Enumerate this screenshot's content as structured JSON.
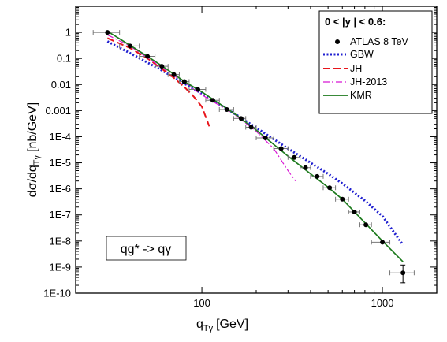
{
  "chart_data": {
    "type": "line",
    "xlabel": "q",
    "xlabel_sub": "Tγ",
    "xlabel_unit": "[GeV]",
    "ylabel": "dσ/dq",
    "ylabel_sub": "Tγ",
    "ylabel_unit": "[nb/GeV]",
    "x_scale": "log",
    "y_scale": "log",
    "xlim": [
      20,
      2000
    ],
    "ylim": [
      1e-10,
      10
    ],
    "x_ticks": [
      {
        "v": 100,
        "label": "100"
      },
      {
        "v": 1000,
        "label": "1000"
      }
    ],
    "y_ticks": [
      {
        "v": 1,
        "label": "1"
      },
      {
        "v": 0.1,
        "label": "0.1"
      },
      {
        "v": 0.01,
        "label": "0.01"
      },
      {
        "v": 0.001,
        "label": "0.001"
      },
      {
        "v": 0.0001,
        "label": "1E-4"
      },
      {
        "v": 1e-05,
        "label": "1E-5"
      },
      {
        "v": 1e-06,
        "label": "1E-6"
      },
      {
        "v": 1e-07,
        "label": "1E-7"
      },
      {
        "v": 1e-08,
        "label": "1E-8"
      },
      {
        "v": 1e-09,
        "label": "1E-9"
      },
      {
        "v": 1e-10,
        "label": "1E-10"
      }
    ],
    "legend_title_parts": [
      "0 < |y",
      "| < 0.6:"
    ],
    "legend_position": "top-right",
    "process_label": "qg* -> qγ",
    "data_points": {
      "name": "ATLAS 8 TeV",
      "color": "#000000",
      "points": [
        {
          "x": 30,
          "y": 1.0,
          "xlo": 25,
          "xhi": 35
        },
        {
          "x": 40,
          "y": 0.3,
          "xlo": 35,
          "xhi": 45
        },
        {
          "x": 50,
          "y": 0.12,
          "xlo": 45,
          "xhi": 55
        },
        {
          "x": 60,
          "y": 0.05,
          "xlo": 55,
          "xhi": 65
        },
        {
          "x": 70,
          "y": 0.024,
          "xlo": 65,
          "xhi": 75
        },
        {
          "x": 80,
          "y": 0.013,
          "xlo": 75,
          "xhi": 85
        },
        {
          "x": 95,
          "y": 0.0065,
          "xlo": 85,
          "xhi": 105
        },
        {
          "x": 115,
          "y": 0.0025,
          "xlo": 105,
          "xhi": 125
        },
        {
          "x": 137.5,
          "y": 0.0011,
          "xlo": 125,
          "xhi": 150
        },
        {
          "x": 165,
          "y": 0.0005,
          "xlo": 150,
          "xhi": 175
        },
        {
          "x": 187.5,
          "y": 0.00023,
          "xlo": 175,
          "xhi": 200
        },
        {
          "x": 225,
          "y": 9e-05,
          "xlo": 200,
          "xhi": 250
        },
        {
          "x": 275,
          "y": 3.5e-05,
          "xlo": 250,
          "xhi": 300
        },
        {
          "x": 325,
          "y": 1.6e-05,
          "xlo": 300,
          "xhi": 350
        },
        {
          "x": 375,
          "y": 6.5e-06,
          "xlo": 350,
          "xhi": 400
        },
        {
          "x": 435,
          "y": 3e-06,
          "xlo": 400,
          "xhi": 470
        },
        {
          "x": 510,
          "y": 1.1e-06,
          "xlo": 470,
          "xhi": 550
        },
        {
          "x": 600,
          "y": 4e-07,
          "xlo": 550,
          "xhi": 650
        },
        {
          "x": 700,
          "y": 1.3e-07,
          "xlo": 650,
          "xhi": 750
        },
        {
          "x": 810,
          "y": 4.2e-08,
          "xlo": 750,
          "xhi": 870
        },
        {
          "x": 1000,
          "y": 9e-09,
          "xlo": 870,
          "xhi": 1100
        },
        {
          "x": 1300,
          "y": 6e-10,
          "xlo": 1100,
          "xhi": 1500,
          "ylo": 2.5e-10,
          "yhi": 1.2e-09
        }
      ]
    },
    "series": [
      {
        "name": "GBW",
        "color": "#1f1fd0",
        "dash": "2,2.5",
        "width": 3,
        "points": [
          [
            30,
            0.45
          ],
          [
            40,
            0.16
          ],
          [
            60,
            0.035
          ],
          [
            80,
            0.011
          ],
          [
            100,
            0.0045
          ],
          [
            150,
            0.0008
          ],
          [
            200,
            0.00022
          ],
          [
            300,
            3.5e-05
          ],
          [
            400,
            1e-05
          ],
          [
            500,
            3.8e-06
          ],
          [
            600,
            1.6e-06
          ],
          [
            800,
            3.5e-07
          ],
          [
            1000,
            9e-08
          ],
          [
            1300,
            7e-09
          ]
        ]
      },
      {
        "name": "JH",
        "color": "#e8151b",
        "dash": "9,4",
        "width": 2,
        "points": [
          [
            30,
            0.6
          ],
          [
            40,
            0.25
          ],
          [
            50,
            0.1
          ],
          [
            60,
            0.04
          ],
          [
            70,
            0.018
          ],
          [
            80,
            0.008
          ],
          [
            90,
            0.0035
          ],
          [
            100,
            0.0014
          ],
          [
            110,
            0.00025
          ]
        ]
      },
      {
        "name": "JH-2013",
        "color": "#d817d4",
        "dash": "8,3,2,3",
        "width": 1.2,
        "points": [
          [
            30,
            0.8
          ],
          [
            40,
            0.3
          ],
          [
            60,
            0.045
          ],
          [
            80,
            0.012
          ],
          [
            100,
            0.004
          ],
          [
            150,
            0.00075
          ],
          [
            200,
            0.00016
          ],
          [
            250,
            3.5e-05
          ],
          [
            300,
            5e-06
          ],
          [
            330,
            2e-06
          ]
        ]
      },
      {
        "name": "KMR",
        "color": "#1d7a1d",
        "dash": "",
        "width": 1.7,
        "points": [
          [
            30,
            1.1
          ],
          [
            40,
            0.32
          ],
          [
            50,
            0.12
          ],
          [
            60,
            0.052
          ],
          [
            80,
            0.013
          ],
          [
            100,
            0.0052
          ],
          [
            150,
            0.0008
          ],
          [
            200,
            0.00018
          ],
          [
            300,
            1.8e-05
          ],
          [
            400,
            3.8e-06
          ],
          [
            500,
            1.15e-06
          ],
          [
            600,
            4e-07
          ],
          [
            800,
            5e-08
          ],
          [
            1000,
            1e-08
          ],
          [
            1300,
            1.6e-09
          ]
        ]
      }
    ]
  }
}
